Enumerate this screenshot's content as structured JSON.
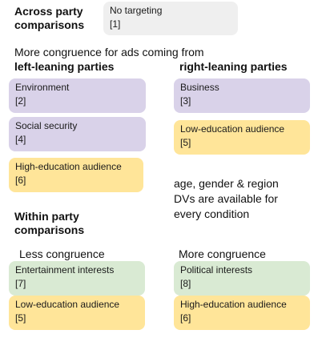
{
  "across": {
    "heading_line1": "Across party",
    "heading_line2": "comparisons",
    "no_targeting": {
      "label": "No targeting",
      "num": "[1]"
    }
  },
  "more_congruence_intro": "More congruence for ads coming from",
  "left_heading": "left-leaning parties",
  "right_heading": "right-leaning parties",
  "left_boxes": {
    "environment": {
      "label": "Environment",
      "num": "[2]"
    },
    "social_security": {
      "label": "Social security",
      "num": "[4]"
    },
    "high_education": {
      "label": "High-education audience",
      "num": "[6]"
    }
  },
  "right_boxes": {
    "business": {
      "label": "Business",
      "num": "[3]"
    },
    "low_education": {
      "label": "Low-education audience",
      "num": "[5]"
    }
  },
  "note": {
    "line1": "age, gender & region",
    "line2": "DVs are available for",
    "line3": "every condition"
  },
  "within": {
    "heading_line1": "Within party",
    "heading_line2": "comparisons",
    "less_label": "Less congruence",
    "more_label": "More congruence",
    "less_boxes": {
      "entertainment": {
        "label": "Entertainment interests",
        "num": "[7]"
      },
      "low_education": {
        "label": "Low-education audience",
        "num": "[5]"
      }
    },
    "more_boxes": {
      "political": {
        "label": "Political interests",
        "num": "[8]"
      },
      "high_education": {
        "label": "High-education audience",
        "num": "[6]"
      }
    }
  },
  "colors": {
    "grey": "#efefef",
    "purple": "#d9d2e9",
    "yellow": "#ffe599",
    "green": "#d9ead3"
  }
}
